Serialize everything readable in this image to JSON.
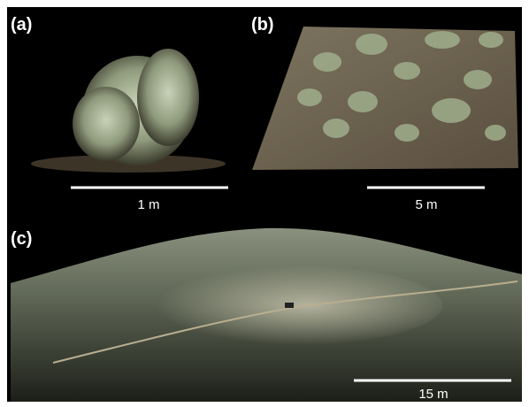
{
  "panels": [
    {
      "label": "(a)",
      "scale": "1 m"
    },
    {
      "label": "(b)",
      "scale": "5 m"
    },
    {
      "label": "(c)",
      "scale": "15 m"
    }
  ]
}
